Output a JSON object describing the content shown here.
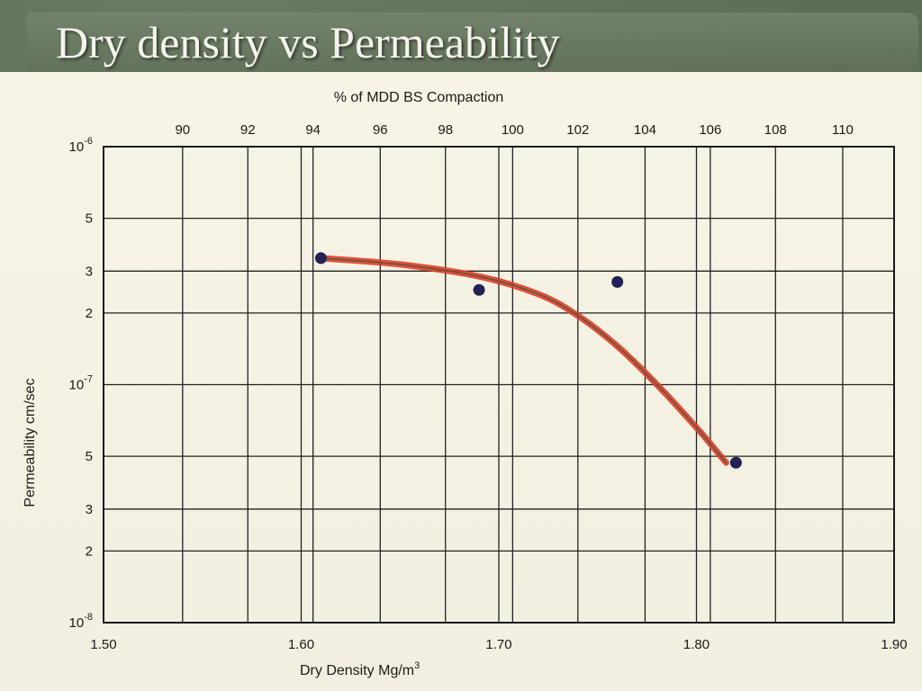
{
  "slide": {
    "title": "Dry density vs Permeability"
  },
  "colors": {
    "trend_line": "#e03c28",
    "trend_line_core": "#5a5a3a",
    "points": "#232255",
    "grid": "#222222",
    "paper": "#f5f2e3"
  },
  "chart_data": {
    "type": "scatter",
    "title": "",
    "xlabel": "Dry Density Mg/m",
    "xlabel_superscript": "3",
    "ylabel": "Permeability cm/sec",
    "top_axis_label": "% of MDD BS Compaction",
    "x_scale": "linear",
    "y_scale": "log",
    "xlim": [
      1.5,
      1.9
    ],
    "ylim": [
      1e-08,
      1e-06
    ],
    "grid": true,
    "x_ticks": [
      "1.50",
      "1.60",
      "1.70",
      "1.80",
      "1.90"
    ],
    "x_tick_values": [
      1.5,
      1.6,
      1.7,
      1.8,
      1.9
    ],
    "y_ticks": [
      {
        "value": 1e-06,
        "mantissa": "10",
        "exponent": "-6"
      },
      {
        "value": 5e-07,
        "mantissa": "5",
        "exponent": ""
      },
      {
        "value": 3e-07,
        "mantissa": "3",
        "exponent": ""
      },
      {
        "value": 2e-07,
        "mantissa": "2",
        "exponent": ""
      },
      {
        "value": 1e-07,
        "mantissa": "10",
        "exponent": "-7"
      },
      {
        "value": 5e-08,
        "mantissa": "5",
        "exponent": ""
      },
      {
        "value": 3e-08,
        "mantissa": "3",
        "exponent": ""
      },
      {
        "value": 2e-08,
        "mantissa": "2",
        "exponent": ""
      },
      {
        "value": 1e-08,
        "mantissa": "10",
        "exponent": "-8"
      }
    ],
    "top_ticks": [
      "90",
      "92",
      "94",
      "96",
      "98",
      "100",
      "102",
      "104",
      "106",
      "108",
      "110"
    ],
    "top_tick_x": [
      1.54,
      1.573,
      1.606,
      1.64,
      1.673,
      1.707,
      1.74,
      1.774,
      1.807,
      1.84,
      1.874
    ],
    "points": [
      {
        "x": 1.61,
        "y": 3.4e-07
      },
      {
        "x": 1.69,
        "y": 2.5e-07
      },
      {
        "x": 1.76,
        "y": 2.7e-07
      },
      {
        "x": 1.82,
        "y": 4.7e-08
      }
    ],
    "trend": [
      {
        "x": 1.61,
        "y": 3.4e-07
      },
      {
        "x": 1.65,
        "y": 3.2e-07
      },
      {
        "x": 1.69,
        "y": 2.85e-07
      },
      {
        "x": 1.72,
        "y": 2.4e-07
      },
      {
        "x": 1.74,
        "y": 1.95e-07
      },
      {
        "x": 1.76,
        "y": 1.45e-07
      },
      {
        "x": 1.78,
        "y": 1e-07
      },
      {
        "x": 1.8,
        "y": 6.6e-08
      },
      {
        "x": 1.815,
        "y": 4.7e-08
      }
    ]
  }
}
